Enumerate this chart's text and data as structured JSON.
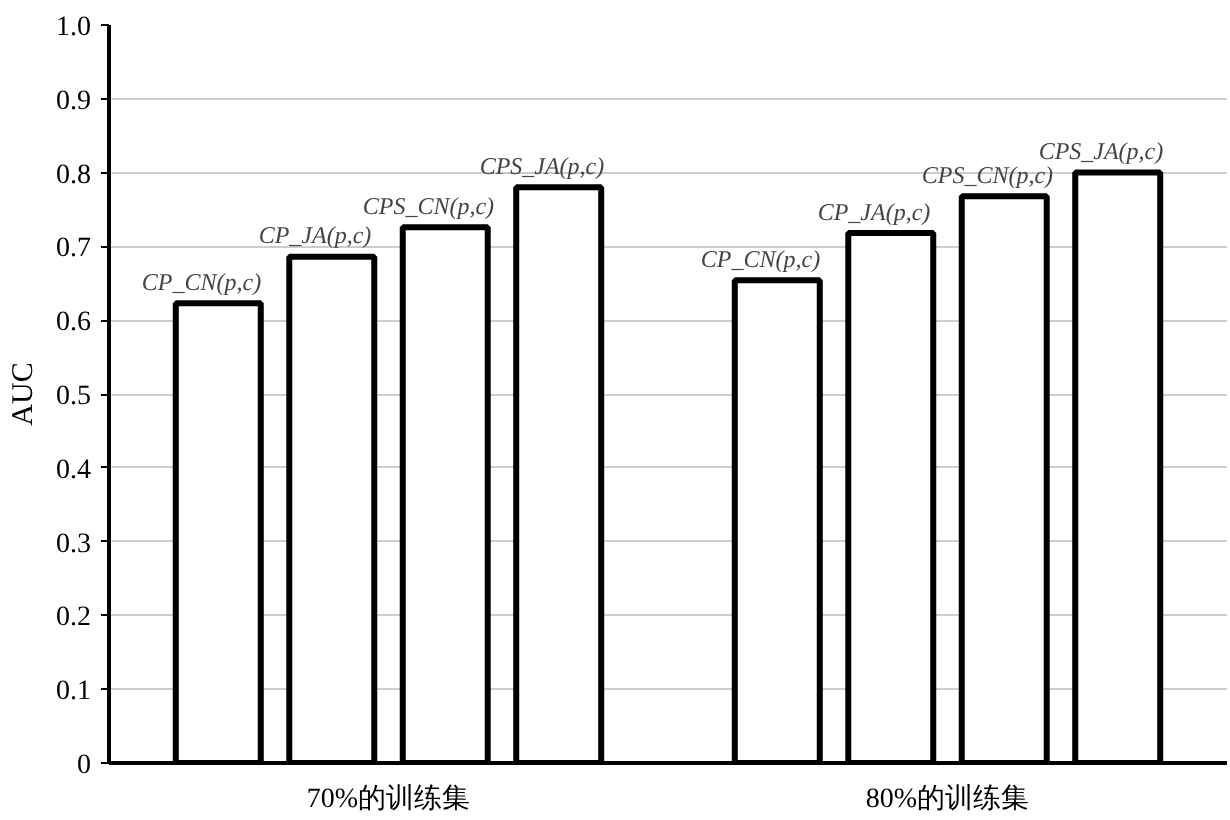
{
  "chart_data": {
    "type": "bar",
    "ylabel": "AUC",
    "categories": [
      "70%的训练集",
      "80%的训练集"
    ],
    "series": [
      {
        "name": "CP_CN(p,c)",
        "color": "#ffffff",
        "values": [
          0.623,
          0.654
        ]
      },
      {
        "name": "CP_JA(p,c)",
        "color": "#ffffff",
        "values": [
          0.686,
          0.718
        ]
      },
      {
        "name": "CPS_CN(p,c)",
        "color": "#ffffff",
        "values": [
          0.726,
          0.768
        ]
      },
      {
        "name": "CPS_JA(p,c)",
        "color": "#ffffff",
        "values": [
          0.78,
          0.8
        ]
      }
    ],
    "ylim": [
      0,
      1.0
    ],
    "yticks": [
      0,
      0.1,
      0.2,
      0.3,
      0.4,
      0.5,
      0.6,
      0.7,
      0.8,
      0.9,
      {
        "value": 1.0,
        "label": "1.0"
      }
    ],
    "grid": "y"
  }
}
